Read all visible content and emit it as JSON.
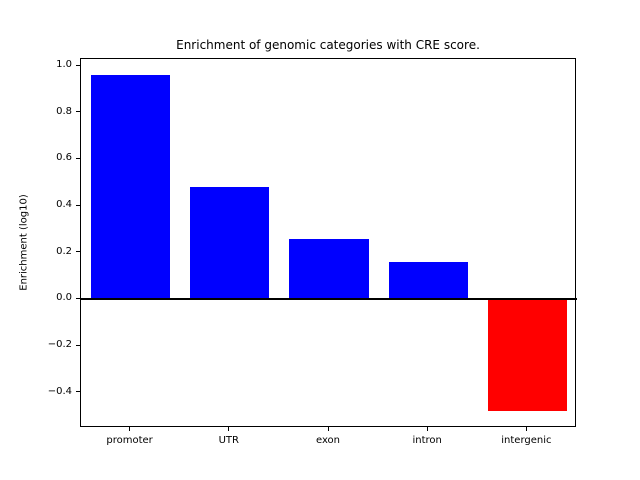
{
  "figure": {
    "title": "Enrichment of genomic categories with CRE score."
  },
  "chart_data": {
    "type": "bar",
    "title": "Enrichment of genomic categories with CRE score.",
    "xlabel": "",
    "ylabel": "Enrichment (log10)",
    "categories": [
      "promoter",
      "UTR",
      "exon",
      "intron",
      "intergenic"
    ],
    "values": [
      0.96,
      0.48,
      0.26,
      0.16,
      -0.48
    ],
    "bar_colors": [
      "#0000ff",
      "#0000ff",
      "#0000ff",
      "#0000ff",
      "#ff0000"
    ],
    "positive_color": "#0000ff",
    "negative_color": "#ff0000",
    "ylim": [
      -0.552,
      1.032
    ],
    "yticks": [
      1.0,
      0.8,
      0.6,
      0.4,
      0.2,
      0.0,
      -0.2,
      -0.4
    ],
    "bar_width_fraction": 0.8,
    "zero_line": true,
    "grid": false,
    "legend_position": "none",
    "background_color": "#ffffff",
    "axes_color": "#000000"
  }
}
